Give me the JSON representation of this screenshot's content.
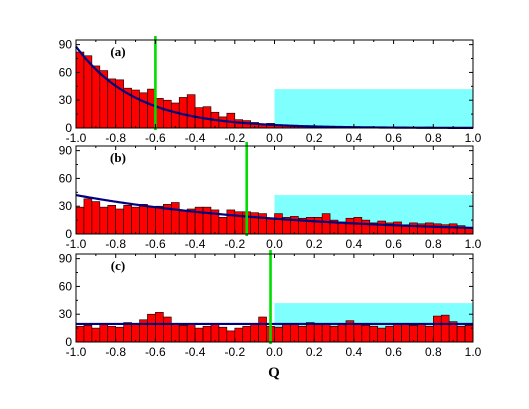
{
  "chart_data": {
    "type": "bar",
    "xlabel": "Q",
    "xlim": [
      -1.0,
      1.0
    ],
    "ylim": [
      0,
      95
    ],
    "xticks": [
      "-1.0",
      "-0.8",
      "-0.6",
      "-0.4",
      "-0.2",
      "0.0",
      "0.2",
      "0.4",
      "0.6",
      "0.8",
      "1.0"
    ],
    "yticks": [
      "0",
      "30",
      "60",
      "90"
    ],
    "bin_width": 0.04,
    "colors": {
      "bar_fill": "#ff0000",
      "bar_edge": "#000000",
      "fit_line": "#000080",
      "vertical_marker": "#00dd00",
      "shaded_region": "#80ffff"
    },
    "panels": [
      {
        "label": "(a)",
        "bin_left_edges": [
          -1.0,
          -0.96,
          -0.92,
          -0.88,
          -0.84,
          -0.8,
          -0.76,
          -0.72,
          -0.68,
          -0.64,
          -0.6,
          -0.56,
          -0.52,
          -0.48,
          -0.44,
          -0.4,
          -0.36,
          -0.32,
          -0.28,
          -0.24,
          -0.2,
          -0.16,
          -0.12,
          -0.08,
          -0.04,
          0.0,
          0.04,
          0.08,
          0.12,
          0.16,
          0.2,
          0.24,
          0.28,
          0.32,
          0.36,
          0.4,
          0.44,
          0.48,
          0.52,
          0.56,
          0.6,
          0.64,
          0.68,
          0.72,
          0.76,
          0.8,
          0.84,
          0.88,
          0.92,
          0.96
        ],
        "values": [
          82,
          78,
          67,
          62,
          53,
          52,
          43,
          41,
          38,
          42,
          32,
          30,
          27,
          33,
          36,
          22,
          23,
          17,
          12,
          16,
          9,
          8,
          6,
          4,
          5,
          3,
          3,
          2,
          2,
          2,
          1,
          1,
          1,
          1,
          1,
          1,
          0,
          1,
          1,
          0,
          0,
          1,
          0,
          0,
          1,
          0,
          0,
          0,
          0,
          0
        ],
        "fit": {
          "type": "exponential",
          "a": 88,
          "b": 3.3
        },
        "vertical_marker_x": -0.6,
        "shaded_region": {
          "x": [
            0.0,
            1.0
          ],
          "y": [
            0,
            42
          ]
        }
      },
      {
        "label": "(b)",
        "bin_left_edges": [
          -1.0,
          -0.96,
          -0.92,
          -0.88,
          -0.84,
          -0.8,
          -0.76,
          -0.72,
          -0.68,
          -0.64,
          -0.6,
          -0.56,
          -0.52,
          -0.48,
          -0.44,
          -0.4,
          -0.36,
          -0.32,
          -0.28,
          -0.24,
          -0.2,
          -0.16,
          -0.12,
          -0.08,
          -0.04,
          0.0,
          0.04,
          0.08,
          0.12,
          0.16,
          0.2,
          0.24,
          0.28,
          0.32,
          0.36,
          0.4,
          0.44,
          0.48,
          0.52,
          0.56,
          0.6,
          0.64,
          0.68,
          0.72,
          0.76,
          0.8,
          0.84,
          0.88,
          0.92,
          0.96
        ],
        "values": [
          29,
          38,
          35,
          29,
          31,
          27,
          31,
          29,
          32,
          29,
          30,
          32,
          34,
          25,
          27,
          29,
          29,
          26,
          18,
          26,
          24,
          24,
          23,
          22,
          17,
          22,
          18,
          19,
          17,
          18,
          18,
          22,
          15,
          13,
          17,
          18,
          15,
          12,
          14,
          12,
          13,
          10,
          12,
          11,
          12,
          11,
          10,
          11,
          9,
          6
        ],
        "fit": {
          "type": "exponential",
          "a": 42,
          "b": 0.93
        },
        "vertical_marker_x": -0.14,
        "shaded_region": {
          "x": [
            0.0,
            1.0
          ],
          "y": [
            0,
            42
          ]
        }
      },
      {
        "label": "(c)",
        "bin_left_edges": [
          -1.0,
          -0.96,
          -0.92,
          -0.88,
          -0.84,
          -0.8,
          -0.76,
          -0.72,
          -0.68,
          -0.64,
          -0.6,
          -0.56,
          -0.52,
          -0.48,
          -0.44,
          -0.4,
          -0.36,
          -0.32,
          -0.28,
          -0.24,
          -0.2,
          -0.16,
          -0.12,
          -0.08,
          -0.04,
          0.0,
          0.04,
          0.08,
          0.12,
          0.16,
          0.2,
          0.24,
          0.28,
          0.32,
          0.36,
          0.4,
          0.44,
          0.48,
          0.52,
          0.56,
          0.6,
          0.64,
          0.68,
          0.72,
          0.76,
          0.8,
          0.84,
          0.88,
          0.92,
          0.96
        ],
        "values": [
          17,
          18,
          15,
          20,
          17,
          16,
          21,
          19,
          24,
          30,
          32,
          27,
          20,
          18,
          20,
          15,
          17,
          20,
          16,
          12,
          15,
          17,
          19,
          27,
          17,
          16,
          20,
          19,
          17,
          21,
          20,
          19,
          17,
          19,
          23,
          20,
          18,
          17,
          15,
          17,
          19,
          20,
          18,
          19,
          17,
          28,
          29,
          22,
          17,
          18
        ],
        "fit": {
          "type": "constant",
          "value": 19.5
        },
        "vertical_marker_x": -0.02,
        "shaded_region": {
          "x": [
            0.0,
            1.0
          ],
          "y": [
            0,
            42
          ]
        }
      }
    ]
  }
}
